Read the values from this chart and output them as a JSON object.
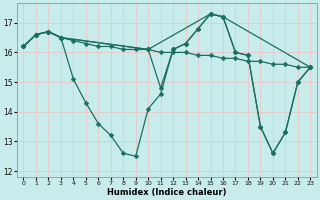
{
  "xlabel": "Humidex (Indice chaleur)",
  "bg_color": "#c8ecec",
  "line_color": "#1a7060",
  "grid_color": "#b0d8d8",
  "xlim": [
    -0.5,
    23.5
  ],
  "ylim": [
    11.8,
    17.65
  ],
  "yticks": [
    12,
    13,
    14,
    15,
    16,
    17
  ],
  "xticks": [
    0,
    1,
    2,
    3,
    4,
    5,
    6,
    7,
    8,
    9,
    10,
    11,
    12,
    13,
    14,
    15,
    16,
    17,
    18,
    19,
    20,
    21,
    22,
    23
  ],
  "line1": {
    "x": [
      0,
      1,
      2,
      3,
      4,
      5,
      6,
      7,
      8,
      9,
      10,
      11,
      12,
      13,
      14,
      15,
      16,
      17,
      18,
      19,
      20,
      21,
      22,
      23
    ],
    "y": [
      16.2,
      16.6,
      16.7,
      16.5,
      15.1,
      14.3,
      13.6,
      13.2,
      12.6,
      12.5,
      14.1,
      14.6,
      16.1,
      16.3,
      16.8,
      17.3,
      17.2,
      16.0,
      15.9,
      13.5,
      12.6,
      13.3,
      15.0,
      15.5
    ]
  },
  "line2": {
    "x": [
      0,
      1,
      2,
      3,
      4,
      5,
      6,
      7,
      8,
      9,
      10,
      11,
      12,
      13,
      14,
      15,
      16,
      17,
      18,
      19,
      20,
      21,
      22,
      23
    ],
    "y": [
      16.2,
      16.6,
      16.7,
      16.5,
      16.4,
      16.3,
      16.2,
      16.2,
      16.1,
      16.1,
      16.1,
      16.0,
      16.0,
      16.0,
      15.9,
      15.9,
      15.8,
      15.8,
      15.7,
      15.7,
      15.6,
      15.6,
      15.5,
      15.5
    ]
  },
  "line3": {
    "x": [
      0,
      1,
      2,
      3,
      10,
      11,
      12,
      13,
      14,
      15,
      16,
      17,
      18,
      19,
      20,
      21,
      22,
      23
    ],
    "y": [
      16.2,
      16.6,
      16.7,
      16.5,
      16.1,
      14.8,
      16.1,
      16.3,
      16.8,
      17.3,
      17.2,
      16.0,
      15.9,
      13.5,
      12.6,
      13.3,
      15.0,
      15.5
    ]
  },
  "line4": {
    "x": [
      0,
      1,
      2,
      3,
      10,
      15,
      16,
      23
    ],
    "y": [
      16.2,
      16.6,
      16.7,
      16.5,
      16.1,
      17.3,
      17.2,
      15.5
    ]
  }
}
